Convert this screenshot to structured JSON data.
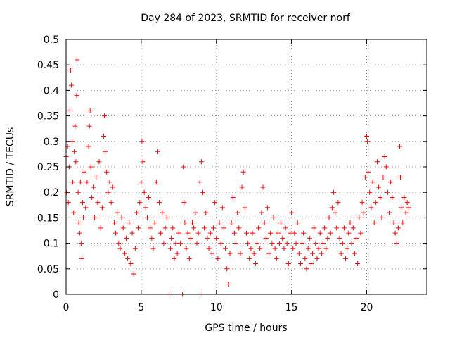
{
  "chart_data": {
    "type": "scatter",
    "title": "Day 284 of 2023, SRMTID for receiver norf",
    "xlabel": "GPS time / hours",
    "ylabel": "SRMTID / TECUs",
    "xlim": [
      0,
      24
    ],
    "ylim": [
      0,
      0.5
    ],
    "xticks": [
      "0",
      "5",
      "10",
      "15",
      "20"
    ],
    "yticks": [
      "0",
      "0.05",
      "0.1",
      "0.15",
      "0.2",
      "0.25",
      "0.3",
      "0.35",
      "0.4",
      "0.45",
      "0.5"
    ],
    "grid": true,
    "marker": "+",
    "color": "#ff0000",
    "series": [
      {
        "name": "",
        "points": [
          [
            0.0,
            0.27
          ],
          [
            0.05,
            0.2
          ],
          [
            0.1,
            0.29
          ],
          [
            0.15,
            0.18
          ],
          [
            0.2,
            0.25
          ],
          [
            0.25,
            0.36
          ],
          [
            0.3,
            0.44
          ],
          [
            0.35,
            0.41
          ],
          [
            0.4,
            0.3
          ],
          [
            0.45,
            0.22
          ],
          [
            0.5,
            0.16
          ],
          [
            0.55,
            0.28
          ],
          [
            0.6,
            0.33
          ],
          [
            0.65,
            0.26
          ],
          [
            0.7,
            0.39
          ],
          [
            0.72,
            0.46
          ],
          [
            0.8,
            0.2
          ],
          [
            0.85,
            0.14
          ],
          [
            0.9,
            0.12
          ],
          [
            0.95,
            0.22
          ],
          [
            1.0,
            0.1
          ],
          [
            1.05,
            0.07
          ],
          [
            1.1,
            0.18
          ],
          [
            1.15,
            0.15
          ],
          [
            1.2,
            0.24
          ],
          [
            1.3,
            0.17
          ],
          [
            1.4,
            0.22
          ],
          [
            1.5,
            0.29
          ],
          [
            1.55,
            0.33
          ],
          [
            1.6,
            0.36
          ],
          [
            1.65,
            0.25
          ],
          [
            1.7,
            0.19
          ],
          [
            1.8,
            0.21
          ],
          [
            1.9,
            0.15
          ],
          [
            2.0,
            0.23
          ],
          [
            2.1,
            0.18
          ],
          [
            2.2,
            0.26
          ],
          [
            2.3,
            0.13
          ],
          [
            2.4,
            0.17
          ],
          [
            2.5,
            0.31
          ],
          [
            2.55,
            0.35
          ],
          [
            2.6,
            0.28
          ],
          [
            2.7,
            0.24
          ],
          [
            2.8,
            0.2
          ],
          [
            2.9,
            0.22
          ],
          [
            3.0,
            0.18
          ],
          [
            3.1,
            0.21
          ],
          [
            3.2,
            0.14
          ],
          [
            3.3,
            0.12
          ],
          [
            3.4,
            0.16
          ],
          [
            3.5,
            0.1
          ],
          [
            3.6,
            0.09
          ],
          [
            3.7,
            0.15
          ],
          [
            3.8,
            0.13
          ],
          [
            3.9,
            0.08
          ],
          [
            4.0,
            0.11
          ],
          [
            4.1,
            0.07
          ],
          [
            4.2,
            0.14
          ],
          [
            4.3,
            0.06
          ],
          [
            4.4,
            0.12
          ],
          [
            4.5,
            0.04
          ],
          [
            4.6,
            0.09
          ],
          [
            4.7,
            0.16
          ],
          [
            4.8,
            0.13
          ],
          [
            4.9,
            0.18
          ],
          [
            5.0,
            0.22
          ],
          [
            5.05,
            0.3
          ],
          [
            5.1,
            0.26
          ],
          [
            5.2,
            0.2
          ],
          [
            5.3,
            0.17
          ],
          [
            5.4,
            0.15
          ],
          [
            5.5,
            0.19
          ],
          [
            5.6,
            0.13
          ],
          [
            5.7,
            0.11
          ],
          [
            5.8,
            0.09
          ],
          [
            5.9,
            0.14
          ],
          [
            6.0,
            0.22
          ],
          [
            6.1,
            0.28
          ],
          [
            6.2,
            0.18
          ],
          [
            6.3,
            0.12
          ],
          [
            6.4,
            0.16
          ],
          [
            6.5,
            0.1
          ],
          [
            6.6,
            0.13
          ],
          [
            6.7,
            0.15
          ],
          [
            6.85,
            0.0
          ],
          [
            6.95,
            0.09
          ],
          [
            7.0,
            0.11
          ],
          [
            7.1,
            0.13
          ],
          [
            7.2,
            0.07
          ],
          [
            7.3,
            0.1
          ],
          [
            7.4,
            0.08
          ],
          [
            7.5,
            0.12
          ],
          [
            7.6,
            0.1
          ],
          [
            7.75,
            0.0
          ],
          [
            7.8,
            0.25
          ],
          [
            7.85,
            0.18
          ],
          [
            7.9,
            0.14
          ],
          [
            8.0,
            0.09
          ],
          [
            8.1,
            0.12
          ],
          [
            8.2,
            0.07
          ],
          [
            8.3,
            0.11
          ],
          [
            8.4,
            0.14
          ],
          [
            8.5,
            0.13
          ],
          [
            8.6,
            0.16
          ],
          [
            8.7,
            0.1
          ],
          [
            8.8,
            0.12
          ],
          [
            8.9,
            0.22
          ],
          [
            9.0,
            0.26
          ],
          [
            9.05,
            0.0
          ],
          [
            9.1,
            0.2
          ],
          [
            9.2,
            0.13
          ],
          [
            9.3,
            0.16
          ],
          [
            9.4,
            0.11
          ],
          [
            9.5,
            0.09
          ],
          [
            9.6,
            0.12
          ],
          [
            9.7,
            0.08
          ],
          [
            9.8,
            0.13
          ],
          [
            9.9,
            0.18
          ],
          [
            10.0,
            0.11
          ],
          [
            10.1,
            0.07
          ],
          [
            10.2,
            0.14
          ],
          [
            10.3,
            0.1
          ],
          [
            10.4,
            0.17
          ],
          [
            10.5,
            0.13
          ],
          [
            10.6,
            0.09
          ],
          [
            10.7,
            0.05
          ],
          [
            10.8,
            0.02
          ],
          [
            10.9,
            0.08
          ],
          [
            11.0,
            0.14
          ],
          [
            11.1,
            0.19
          ],
          [
            11.2,
            0.12
          ],
          [
            11.3,
            0.1
          ],
          [
            11.4,
            0.16
          ],
          [
            11.5,
            0.13
          ],
          [
            11.6,
            0.08
          ],
          [
            11.7,
            0.21
          ],
          [
            11.8,
            0.24
          ],
          [
            11.9,
            0.17
          ],
          [
            12.0,
            0.12
          ],
          [
            12.1,
            0.1
          ],
          [
            12.2,
            0.07
          ],
          [
            12.3,
            0.09
          ],
          [
            12.4,
            0.12
          ],
          [
            12.5,
            0.08
          ],
          [
            12.6,
            0.06
          ],
          [
            12.7,
            0.1
          ],
          [
            12.8,
            0.13
          ],
          [
            12.9,
            0.09
          ],
          [
            13.0,
            0.16
          ],
          [
            13.1,
            0.21
          ],
          [
            13.2,
            0.14
          ],
          [
            13.3,
            0.11
          ],
          [
            13.4,
            0.17
          ],
          [
            13.5,
            0.08
          ],
          [
            13.6,
            0.12
          ],
          [
            13.7,
            0.1
          ],
          [
            13.8,
            0.15
          ],
          [
            13.9,
            0.09
          ],
          [
            14.0,
            0.07
          ],
          [
            14.1,
            0.12
          ],
          [
            14.2,
            0.1
          ],
          [
            14.3,
            0.14
          ],
          [
            14.4,
            0.11
          ],
          [
            14.5,
            0.09
          ],
          [
            14.6,
            0.13
          ],
          [
            14.7,
            0.1
          ],
          [
            14.8,
            0.06
          ],
          [
            14.9,
            0.12
          ],
          [
            15.0,
            0.16
          ],
          [
            15.1,
            0.09
          ],
          [
            15.2,
            0.12
          ],
          [
            15.3,
            0.1
          ],
          [
            15.4,
            0.14
          ],
          [
            15.5,
            0.08
          ],
          [
            15.6,
            0.06
          ],
          [
            15.7,
            0.1
          ],
          [
            15.8,
            0.12
          ],
          [
            15.9,
            0.07
          ],
          [
            16.0,
            0.05
          ],
          [
            16.1,
            0.09
          ],
          [
            16.2,
            0.11
          ],
          [
            16.3,
            0.06
          ],
          [
            16.4,
            0.08
          ],
          [
            16.5,
            0.13
          ],
          [
            16.6,
            0.1
          ],
          [
            16.7,
            0.07
          ],
          [
            16.8,
            0.09
          ],
          [
            16.9,
            0.12
          ],
          [
            17.0,
            0.08
          ],
          [
            17.1,
            0.1
          ],
          [
            17.2,
            0.13
          ],
          [
            17.3,
            0.09
          ],
          [
            17.4,
            0.11
          ],
          [
            17.5,
            0.15
          ],
          [
            17.6,
            0.12
          ],
          [
            17.7,
            0.17
          ],
          [
            17.8,
            0.2
          ],
          [
            17.9,
            0.16
          ],
          [
            18.0,
            0.13
          ],
          [
            18.1,
            0.18
          ],
          [
            18.2,
            0.11
          ],
          [
            18.3,
            0.08
          ],
          [
            18.4,
            0.1
          ],
          [
            18.5,
            0.13
          ],
          [
            18.6,
            0.07
          ],
          [
            18.7,
            0.09
          ],
          [
            18.8,
            0.12
          ],
          [
            18.9,
            0.14
          ],
          [
            19.0,
            0.1
          ],
          [
            19.1,
            0.13
          ],
          [
            19.2,
            0.08
          ],
          [
            19.3,
            0.11
          ],
          [
            19.4,
            0.06
          ],
          [
            19.5,
            0.15
          ],
          [
            19.6,
            0.12
          ],
          [
            19.7,
            0.18
          ],
          [
            19.8,
            0.16
          ],
          [
            19.9,
            0.23
          ],
          [
            20.0,
            0.31
          ],
          [
            20.05,
            0.3
          ],
          [
            20.1,
            0.24
          ],
          [
            20.2,
            0.2
          ],
          [
            20.3,
            0.17
          ],
          [
            20.4,
            0.22
          ],
          [
            20.5,
            0.14
          ],
          [
            20.6,
            0.18
          ],
          [
            20.7,
            0.26
          ],
          [
            20.8,
            0.21
          ],
          [
            20.9,
            0.19
          ],
          [
            21.0,
            0.15
          ],
          [
            21.1,
            0.23
          ],
          [
            21.2,
            0.27
          ],
          [
            21.3,
            0.25
          ],
          [
            21.4,
            0.2
          ],
          [
            21.5,
            0.16
          ],
          [
            21.6,
            0.22
          ],
          [
            21.7,
            0.19
          ],
          [
            21.8,
            0.14
          ],
          [
            21.9,
            0.12
          ],
          [
            22.0,
            0.1
          ],
          [
            22.1,
            0.13
          ],
          [
            22.2,
            0.29
          ],
          [
            22.25,
            0.23
          ],
          [
            22.3,
            0.17
          ],
          [
            22.4,
            0.14
          ],
          [
            22.5,
            0.19
          ],
          [
            22.6,
            0.16
          ],
          [
            22.7,
            0.18
          ],
          [
            22.8,
            0.17
          ]
        ]
      }
    ]
  }
}
